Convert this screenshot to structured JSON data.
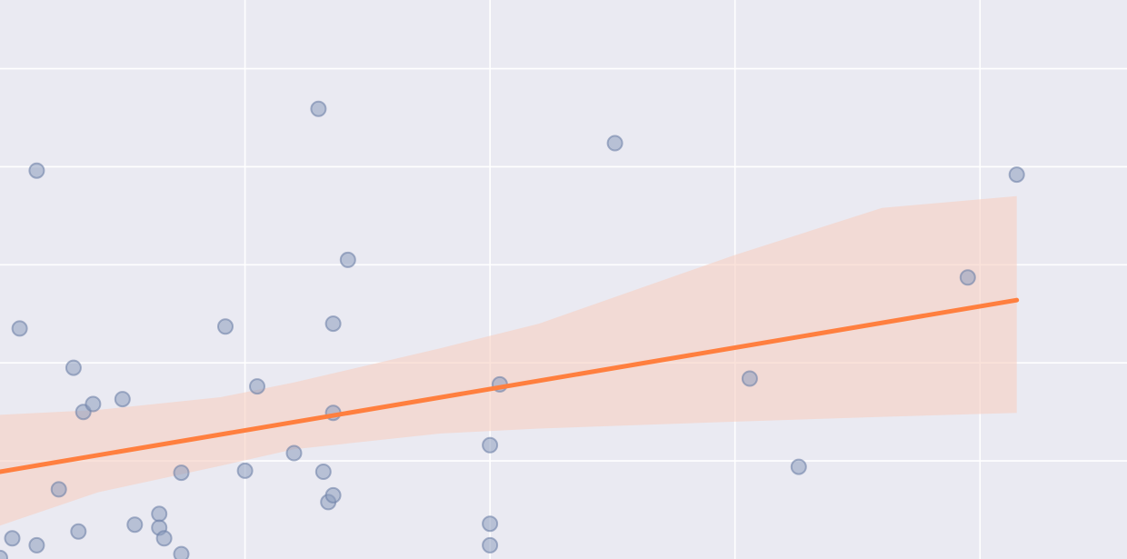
{
  "chart_data": {
    "type": "scatter",
    "title": "",
    "xlabel": "",
    "ylabel": "",
    "grid": true,
    "xlim": [
      0,
      46
    ],
    "ylim": [
      0,
      57
    ],
    "x_gridlines": [
      10,
      20,
      30,
      40
    ],
    "y_gridlines": [
      10,
      20,
      30,
      40,
      50
    ],
    "colors": {
      "background": "#eaeaf2",
      "grid": "#ffffff",
      "points": "#8c9dbe",
      "points_edge": "#6f82a8",
      "fit_line": "#ff7f3f",
      "confidence_band": "#f6cfc2"
    },
    "series": [
      {
        "type": "scatter",
        "points": [
          [
            0.0,
            0.1
          ],
          [
            0.5,
            2.1
          ],
          [
            0.8,
            23.5
          ],
          [
            1.5,
            39.6
          ],
          [
            1.5,
            1.4
          ],
          [
            2.4,
            7.1
          ],
          [
            3.0,
            19.5
          ],
          [
            3.2,
            2.8
          ],
          [
            3.4,
            15.0
          ],
          [
            3.8,
            15.8
          ],
          [
            5.0,
            16.3
          ],
          [
            5.5,
            3.5
          ],
          [
            6.5,
            4.6
          ],
          [
            6.5,
            3.2
          ],
          [
            6.7,
            2.1
          ],
          [
            7.4,
            8.8
          ],
          [
            7.4,
            0.5
          ],
          [
            9.2,
            23.7
          ],
          [
            10.0,
            9.0
          ],
          [
            10.5,
            17.6
          ],
          [
            12.0,
            10.8
          ],
          [
            13.0,
            45.9
          ],
          [
            13.2,
            8.9
          ],
          [
            13.4,
            5.8
          ],
          [
            13.6,
            24.0
          ],
          [
            13.6,
            14.9
          ],
          [
            13.6,
            6.5
          ],
          [
            14.2,
            30.5
          ],
          [
            20.0,
            11.6
          ],
          [
            20.0,
            3.6
          ],
          [
            20.0,
            1.4
          ],
          [
            20.4,
            17.8
          ],
          [
            25.1,
            42.4
          ],
          [
            30.6,
            18.4
          ],
          [
            32.6,
            9.4
          ],
          [
            39.5,
            28.7
          ],
          [
            41.5,
            39.2
          ]
        ]
      },
      {
        "type": "line",
        "name": "",
        "x": [
          0,
          41.5
        ],
        "y": [
          8.9,
          26.4
        ]
      },
      {
        "type": "area",
        "name": "",
        "x": [
          0,
          4,
          9,
          12,
          18,
          22,
          30,
          36,
          41.5
        ],
        "upper": [
          14.7,
          15.2,
          16.5,
          18.0,
          21.5,
          24.0,
          31.0,
          35.8,
          37.0
        ],
        "lower": [
          3.4,
          6.8,
          9.5,
          11.2,
          12.8,
          13.3,
          14.0,
          14.5,
          14.9
        ]
      }
    ]
  }
}
